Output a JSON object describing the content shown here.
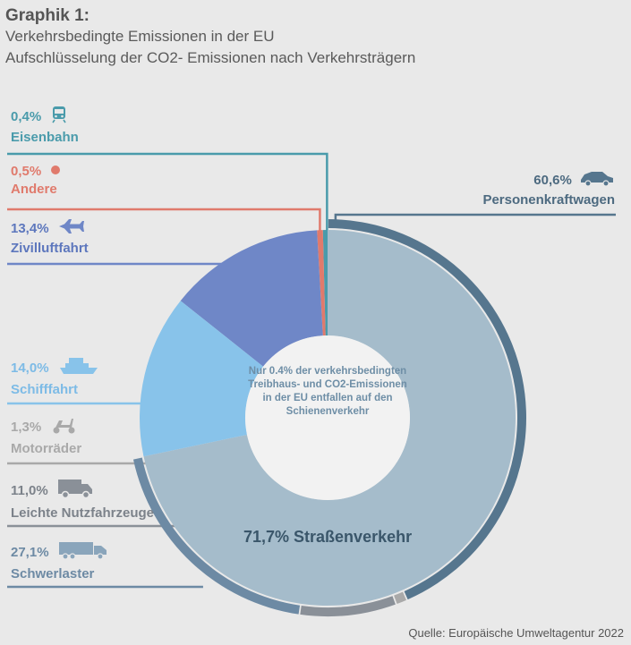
{
  "header": {
    "label": "Graphik 1:",
    "title": "Verkehrsbedingte Emissionen in der EU",
    "subtitle": "Aufschlüsselung der CO2- Emissionen nach Verkehrsträgern"
  },
  "source": "Quelle: Europäische Umweltagentur 2022",
  "center_note": "Nur 0.4% der verkehrsbedingten Treibhaus- und CO2-Emissionen in der EU entfallen auf den Schienenverkehr",
  "road_label": "71,7% Straßenverkehr",
  "chart_data": {
    "type": "pie",
    "title": "Verkehrsbedingte Emissionen in der EU",
    "subtitle": "Aufschlüsselung der CO2- Emissionen nach Verkehrsträgern",
    "unit": "%",
    "slices": [
      {
        "name": "Eisenbahn",
        "label": "0,4%",
        "value": 0.4,
        "color": "#4a9bab",
        "icon": "train-icon"
      },
      {
        "name": "Andere",
        "label": "0,5%",
        "value": 0.5,
        "color": "#e07a6c",
        "icon": "dot-icon"
      },
      {
        "name": "Zivilluftfahrt",
        "label": "13,4%",
        "value": 13.4,
        "color": "#6f87c7",
        "icon": "airplane-icon"
      },
      {
        "name": "Schifffahrt",
        "label": "14,0%",
        "value": 14.0,
        "color": "#88c3ea",
        "icon": "ship-icon"
      },
      {
        "name": "Straßenverkehr",
        "label": "71,7%",
        "value": 71.7,
        "color": "#a5bccb",
        "icon": ""
      }
    ],
    "road_breakdown": [
      {
        "name": "Personenkraftwagen",
        "label": "60,6%",
        "value": 60.6,
        "color": "#56768e",
        "icon": "car-icon"
      },
      {
        "name": "Motorräder",
        "label": "1,3%",
        "value": 1.3,
        "color": "#a9a9a9",
        "icon": "scooter-icon"
      },
      {
        "name": "Leichte Nutzfahrzeuge",
        "label": "11,0%",
        "value": 11.0,
        "color": "#8a9098",
        "icon": "van-icon"
      },
      {
        "name": "Schwerlaster",
        "label": "27,1%",
        "value": 27.1,
        "color": "#6d8aa4",
        "icon": "truck-icon"
      }
    ]
  }
}
